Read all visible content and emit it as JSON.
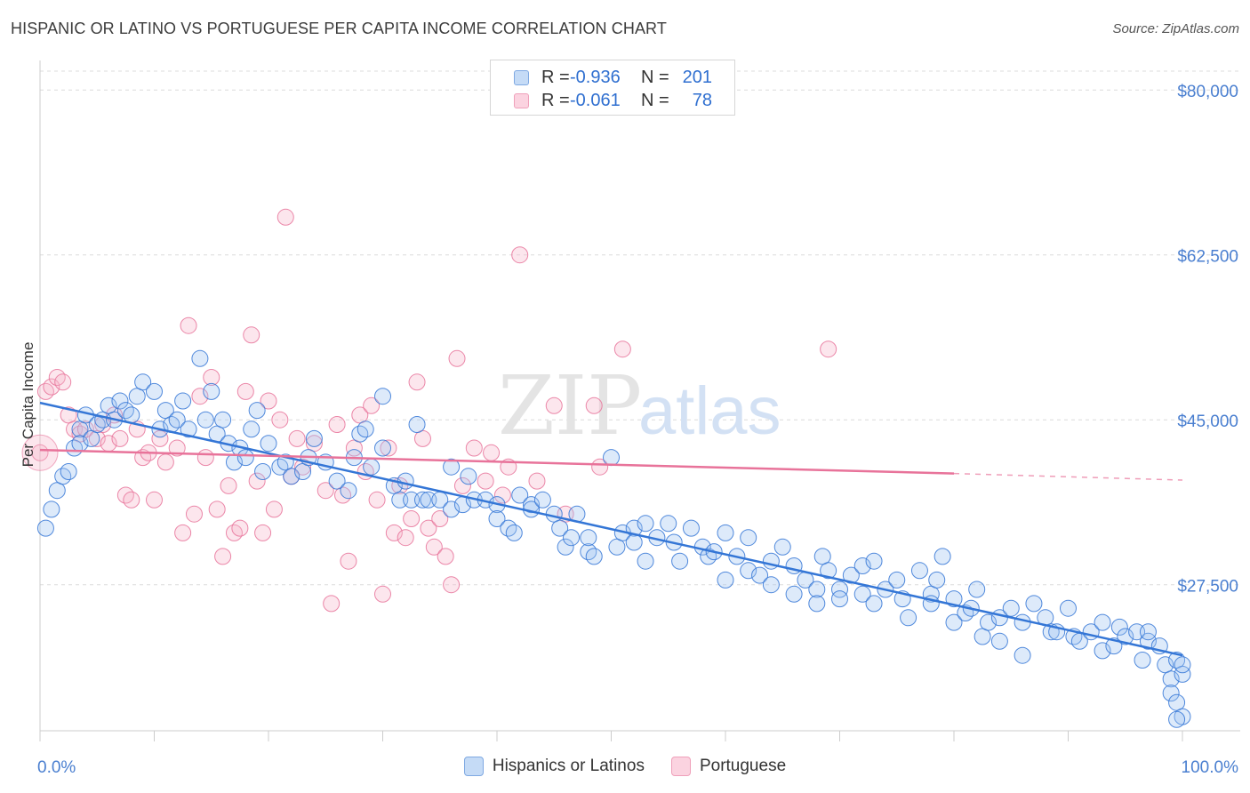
{
  "header": {
    "title": "HISPANIC OR LATINO VS PORTUGUESE PER CAPITA INCOME CORRELATION CHART",
    "source": "Source: ZipAtlas.com"
  },
  "watermark": {
    "zip": "ZIP",
    "atlas": "atlas"
  },
  "legend": {
    "rows": [
      {
        "r_label": "R =",
        "r_value": "-0.936",
        "n_label": "N =",
        "n_value": "201",
        "color": "#9ec4f0"
      },
      {
        "r_label": "R =",
        "r_value": "-0.061",
        "n_label": "N =",
        "n_value": "78",
        "color": "#f6b8cc"
      }
    ]
  },
  "bottom_legend": {
    "items": [
      {
        "label": "Hispanics or Latinos",
        "color": "#9ec4f0"
      },
      {
        "label": "Portuguese",
        "color": "#f6b8cc"
      }
    ]
  },
  "chart_data": {
    "type": "scatter",
    "title": "HISPANIC OR LATINO VS PORTUGUESE PER CAPITA INCOME CORRELATION CHART",
    "xlabel": "",
    "ylabel": "Per Capita Income",
    "xlim": [
      0,
      100
    ],
    "ylim": [
      12000,
      82000
    ],
    "x_tick_labels": [
      "0.0%",
      "100.0%"
    ],
    "y_ticks": [
      27500,
      45000,
      62500,
      80000
    ],
    "y_tick_labels": [
      "$27,500",
      "$45,000",
      "$62,500",
      "$80,000"
    ],
    "grid": true,
    "colors": {
      "blue": "#3476d6",
      "blue_fill": "#9ec4f0",
      "pink": "#e8739a",
      "pink_fill": "#f6b8cc",
      "tick_label": "#4a7fd0"
    },
    "series": [
      {
        "name": "Hispanics or Latinos",
        "r": -0.936,
        "n": 201,
        "trend": {
          "x": [
            0,
            100
          ],
          "y": [
            46800,
            20000
          ]
        },
        "points": [
          [
            0.5,
            33500
          ],
          [
            1,
            35500
          ],
          [
            1.5,
            37500
          ],
          [
            2,
            39000
          ],
          [
            2.5,
            39500
          ],
          [
            3,
            42000
          ],
          [
            3.5,
            44000
          ],
          [
            3.5,
            42500
          ],
          [
            4,
            45500
          ],
          [
            4.5,
            43000
          ],
          [
            5,
            44500
          ],
          [
            5.5,
            45000
          ],
          [
            6,
            46500
          ],
          [
            6.5,
            45000
          ],
          [
            7,
            47000
          ],
          [
            7.5,
            46000
          ],
          [
            8,
            45500
          ],
          [
            8.5,
            47500
          ],
          [
            9,
            49000
          ],
          [
            10,
            48000
          ],
          [
            10.5,
            44000
          ],
          [
            11,
            46000
          ],
          [
            11.5,
            44500
          ],
          [
            12,
            45000
          ],
          [
            12.5,
            47000
          ],
          [
            13,
            44000
          ],
          [
            14,
            51500
          ],
          [
            14.5,
            45000
          ],
          [
            15,
            48000
          ],
          [
            15.5,
            43500
          ],
          [
            16,
            45000
          ],
          [
            16.5,
            42500
          ],
          [
            17,
            40500
          ],
          [
            17.5,
            42000
          ],
          [
            18,
            41000
          ],
          [
            18.5,
            44000
          ],
          [
            19,
            46000
          ],
          [
            19.5,
            39500
          ],
          [
            20,
            42500
          ],
          [
            21,
            40000
          ],
          [
            21.5,
            40500
          ],
          [
            22,
            39000
          ],
          [
            23,
            39500
          ],
          [
            23.5,
            41000
          ],
          [
            24,
            43000
          ],
          [
            25,
            40500
          ],
          [
            26,
            38500
          ],
          [
            27,
            37500
          ],
          [
            27.5,
            41000
          ],
          [
            28,
            43500
          ],
          [
            28.5,
            44000
          ],
          [
            29,
            40000
          ],
          [
            30,
            47500
          ],
          [
            30,
            42000
          ],
          [
            31,
            38000
          ],
          [
            31.5,
            36500
          ],
          [
            32,
            38500
          ],
          [
            32.5,
            36500
          ],
          [
            33,
            44500
          ],
          [
            33.5,
            36500
          ],
          [
            34,
            36500
          ],
          [
            35,
            36500
          ],
          [
            36,
            35500
          ],
          [
            36,
            40000
          ],
          [
            37,
            36000
          ],
          [
            37.5,
            39000
          ],
          [
            38,
            36500
          ],
          [
            39,
            36500
          ],
          [
            40,
            36000
          ],
          [
            40,
            34500
          ],
          [
            41,
            33500
          ],
          [
            41.5,
            33000
          ],
          [
            42,
            37000
          ],
          [
            43,
            36000
          ],
          [
            43,
            35500
          ],
          [
            44,
            36500
          ],
          [
            45,
            35000
          ],
          [
            45.5,
            33500
          ],
          [
            46,
            31500
          ],
          [
            46.5,
            32500
          ],
          [
            47,
            35000
          ],
          [
            48,
            31000
          ],
          [
            48.5,
            30500
          ],
          [
            48,
            32500
          ],
          [
            50,
            41000
          ],
          [
            50.5,
            31500
          ],
          [
            51,
            33000
          ],
          [
            52,
            33500
          ],
          [
            52,
            32000
          ],
          [
            53,
            30000
          ],
          [
            53,
            34000
          ],
          [
            54,
            32500
          ],
          [
            55,
            34000
          ],
          [
            55.5,
            32000
          ],
          [
            56,
            30000
          ],
          [
            57,
            33500
          ],
          [
            58,
            31500
          ],
          [
            58.5,
            30500
          ],
          [
            59,
            31000
          ],
          [
            60,
            28000
          ],
          [
            60,
            33000
          ],
          [
            61,
            30500
          ],
          [
            62,
            29000
          ],
          [
            62,
            32500
          ],
          [
            63,
            28500
          ],
          [
            64,
            27500
          ],
          [
            64,
            30000
          ],
          [
            65,
            31500
          ],
          [
            66,
            29500
          ],
          [
            66,
            26500
          ],
          [
            67,
            28000
          ],
          [
            68,
            27000
          ],
          [
            68,
            25500
          ],
          [
            68.5,
            30500
          ],
          [
            69,
            29000
          ],
          [
            70,
            27000
          ],
          [
            70,
            26000
          ],
          [
            71,
            28500
          ],
          [
            72,
            26500
          ],
          [
            72,
            29500
          ],
          [
            73,
            25500
          ],
          [
            73,
            30000
          ],
          [
            74,
            27000
          ],
          [
            75,
            28000
          ],
          [
            75.5,
            26000
          ],
          [
            76,
            24000
          ],
          [
            77,
            29000
          ],
          [
            78,
            26500
          ],
          [
            78,
            25500
          ],
          [
            78.5,
            28000
          ],
          [
            79,
            30500
          ],
          [
            80,
            26000
          ],
          [
            80,
            23500
          ],
          [
            81,
            24500
          ],
          [
            81.5,
            25000
          ],
          [
            82,
            27000
          ],
          [
            82.5,
            22000
          ],
          [
            83,
            23500
          ],
          [
            84,
            24000
          ],
          [
            84,
            21500
          ],
          [
            85,
            25000
          ],
          [
            86,
            23500
          ],
          [
            86,
            20000
          ],
          [
            87,
            25500
          ],
          [
            88,
            24000
          ],
          [
            88.5,
            22500
          ],
          [
            89,
            22500
          ],
          [
            90,
            25000
          ],
          [
            90.5,
            22000
          ],
          [
            91,
            21500
          ],
          [
            92,
            22500
          ],
          [
            93,
            23500
          ],
          [
            93,
            20500
          ],
          [
            94,
            21000
          ],
          [
            94.5,
            23000
          ],
          [
            95,
            22000
          ],
          [
            96,
            22500
          ],
          [
            96.5,
            19500
          ],
          [
            97,
            21500
          ],
          [
            97,
            22500
          ],
          [
            98,
            21000
          ],
          [
            98.5,
            19000
          ],
          [
            99,
            17500
          ],
          [
            99.5,
            19500
          ],
          [
            100,
            18000
          ],
          [
            100,
            19000
          ],
          [
            99,
            16000
          ],
          [
            99.5,
            15000
          ],
          [
            100,
            13500
          ],
          [
            99.5,
            13200
          ]
        ]
      },
      {
        "name": "Portuguese",
        "r": -0.061,
        "n": 78,
        "trend": {
          "x": [
            0,
            80
          ],
          "y": [
            41800,
            39300
          ]
        },
        "trend_dashed": {
          "x": [
            80,
            100
          ],
          "y": [
            39300,
            38600
          ]
        },
        "points": [
          [
            0,
            41500
          ],
          [
            0.5,
            48000
          ],
          [
            1,
            48500
          ],
          [
            1.5,
            49500
          ],
          [
            2,
            49000
          ],
          [
            2.5,
            45500
          ],
          [
            3,
            44000
          ],
          [
            3.5,
            43500
          ],
          [
            4,
            44000
          ],
          [
            5,
            43000
          ],
          [
            5.5,
            44500
          ],
          [
            6,
            42500
          ],
          [
            6.5,
            45500
          ],
          [
            7,
            43000
          ],
          [
            7.5,
            37000
          ],
          [
            8,
            36500
          ],
          [
            8.5,
            44000
          ],
          [
            9,
            41000
          ],
          [
            9.5,
            41500
          ],
          [
            10,
            36500
          ],
          [
            10.5,
            43000
          ],
          [
            11,
            40500
          ],
          [
            12,
            42000
          ],
          [
            12.5,
            33000
          ],
          [
            13,
            55000
          ],
          [
            13.5,
            35000
          ],
          [
            14,
            47500
          ],
          [
            14.5,
            41000
          ],
          [
            15,
            49500
          ],
          [
            15.5,
            35500
          ],
          [
            16,
            30500
          ],
          [
            16.5,
            38000
          ],
          [
            17,
            33000
          ],
          [
            17.5,
            33500
          ],
          [
            18,
            48000
          ],
          [
            18.5,
            54000
          ],
          [
            19,
            38500
          ],
          [
            19.5,
            33000
          ],
          [
            20,
            47000
          ],
          [
            20.5,
            35500
          ],
          [
            21,
            45000
          ],
          [
            21.5,
            66500
          ],
          [
            22,
            39000
          ],
          [
            22.5,
            43000
          ],
          [
            23,
            40000
          ],
          [
            24,
            42500
          ],
          [
            25,
            37500
          ],
          [
            25.5,
            25500
          ],
          [
            26,
            44500
          ],
          [
            26.5,
            37000
          ],
          [
            27,
            30000
          ],
          [
            27.5,
            42000
          ],
          [
            28,
            45500
          ],
          [
            28.5,
            39500
          ],
          [
            29,
            46500
          ],
          [
            29.5,
            36500
          ],
          [
            30,
            26500
          ],
          [
            30.5,
            42000
          ],
          [
            31,
            33000
          ],
          [
            31.5,
            38000
          ],
          [
            32,
            32500
          ],
          [
            32.5,
            34500
          ],
          [
            33,
            49000
          ],
          [
            33.5,
            43000
          ],
          [
            34,
            33500
          ],
          [
            34.5,
            31500
          ],
          [
            35,
            34500
          ],
          [
            35.5,
            30500
          ],
          [
            36,
            27500
          ],
          [
            36.5,
            51500
          ],
          [
            37,
            38000
          ],
          [
            38,
            42000
          ],
          [
            39,
            38500
          ],
          [
            39.5,
            41500
          ],
          [
            40.5,
            37000
          ],
          [
            41,
            40000
          ],
          [
            42,
            62500
          ],
          [
            43.5,
            38500
          ],
          [
            45,
            46500
          ],
          [
            46,
            35000
          ],
          [
            48.5,
            46500
          ],
          [
            49,
            40000
          ],
          [
            51,
            52500
          ],
          [
            69,
            52500
          ]
        ]
      }
    ]
  }
}
